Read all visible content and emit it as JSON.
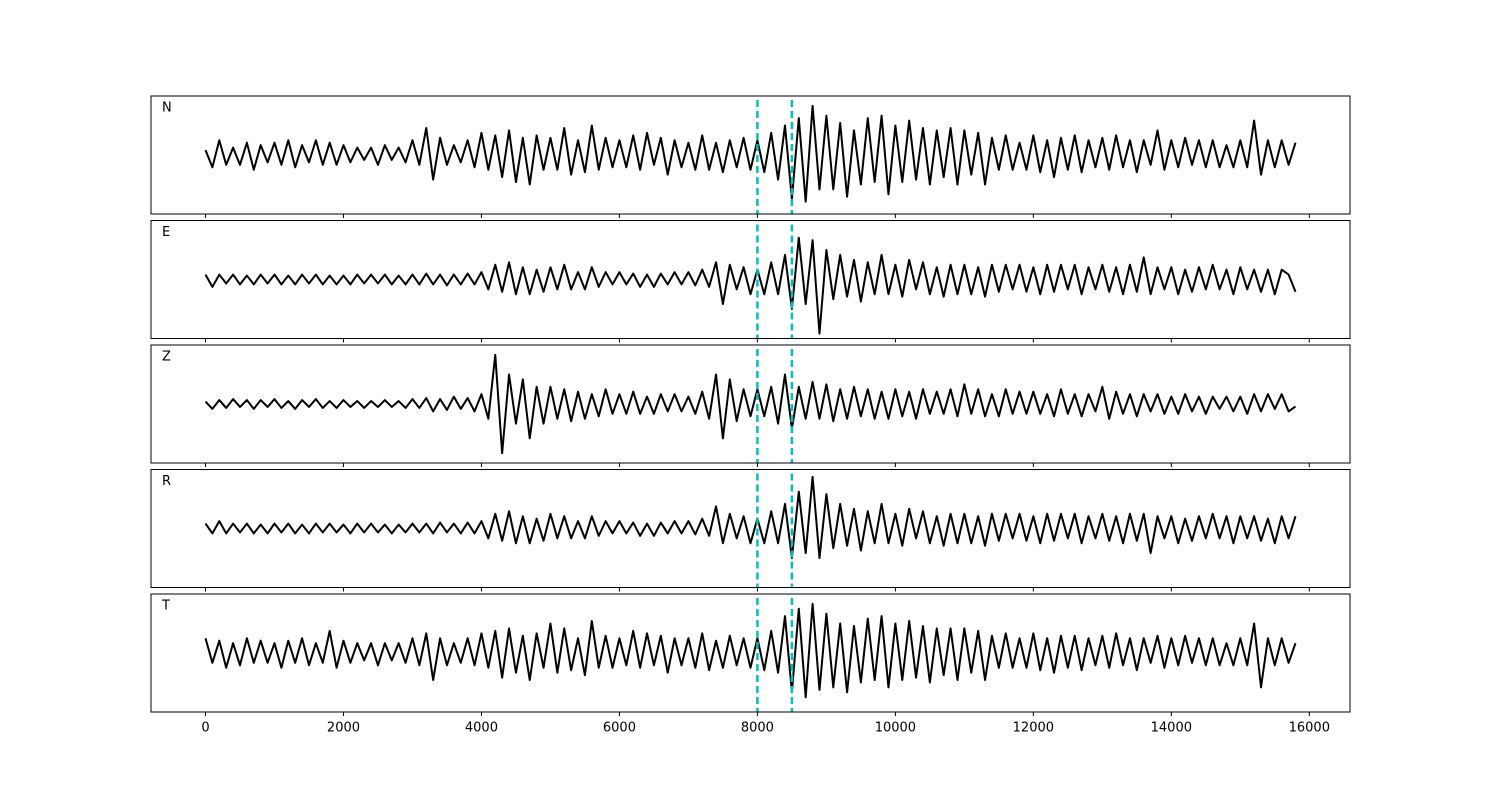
{
  "chart_data": {
    "type": "line",
    "x": [
      0,
      100,
      200,
      300,
      400,
      500,
      600,
      700,
      800,
      900,
      1000,
      1100,
      1200,
      1300,
      1400,
      1500,
      1600,
      1700,
      1800,
      1900,
      2000,
      2100,
      2200,
      2300,
      2400,
      2500,
      2600,
      2700,
      2800,
      2900,
      3000,
      3100,
      3200,
      3300,
      3400,
      3500,
      3600,
      3700,
      3800,
      3900,
      4000,
      4100,
      4200,
      4300,
      4400,
      4500,
      4600,
      4700,
      4800,
      4900,
      5000,
      5100,
      5200,
      5300,
      5400,
      5500,
      5600,
      5700,
      5800,
      5900,
      6000,
      6100,
      6200,
      6300,
      6400,
      6500,
      6600,
      6700,
      6800,
      6900,
      7000,
      7100,
      7200,
      7300,
      7400,
      7500,
      7600,
      7700,
      7800,
      7900,
      8000,
      8100,
      8200,
      8300,
      8400,
      8500,
      8600,
      8700,
      8800,
      8900,
      9000,
      9100,
      9200,
      9300,
      9400,
      9500,
      9600,
      9700,
      9800,
      9900,
      10000,
      10100,
      10200,
      10300,
      10400,
      10500,
      10600,
      10700,
      10800,
      10900,
      11000,
      11100,
      11200,
      11300,
      11400,
      11500,
      11600,
      11700,
      11800,
      11900,
      12000,
      12100,
      12200,
      12300,
      12400,
      12500,
      12600,
      12700,
      12800,
      12900,
      13000,
      13100,
      13200,
      13300,
      13400,
      13500,
      13600,
      13700,
      13800,
      13900,
      14000,
      14100,
      14200,
      14300,
      14400,
      14500,
      14600,
      14700,
      14800,
      14900,
      15000,
      15100,
      15200,
      15300,
      15400,
      15500,
      15600,
      15700,
      15800
    ],
    "series": [
      {
        "name": "N",
        "color": "#000000",
        "values": [
          0.1,
          -0.25,
          0.3,
          -0.2,
          0.15,
          -0.2,
          0.25,
          -0.3,
          0.2,
          -0.15,
          0.25,
          -0.2,
          0.3,
          -0.25,
          0.2,
          -0.15,
          0.3,
          -0.2,
          0.25,
          -0.2,
          0.2,
          -0.15,
          0.15,
          -0.1,
          0.15,
          -0.2,
          0.2,
          -0.1,
          0.15,
          -0.15,
          0.3,
          -0.2,
          0.55,
          -0.5,
          0.35,
          -0.2,
          0.2,
          -0.15,
          0.3,
          -0.25,
          0.45,
          -0.3,
          0.4,
          -0.45,
          0.5,
          -0.55,
          0.35,
          -0.6,
          0.4,
          -0.3,
          0.35,
          -0.3,
          0.55,
          -0.4,
          0.3,
          -0.35,
          0.6,
          -0.3,
          0.35,
          -0.25,
          0.3,
          -0.25,
          0.4,
          -0.3,
          0.45,
          -0.2,
          0.35,
          -0.4,
          0.3,
          -0.25,
          0.25,
          -0.3,
          0.4,
          -0.3,
          0.25,
          -0.35,
          0.3,
          -0.25,
          0.35,
          -0.3,
          0.3,
          -0.35,
          0.45,
          -0.5,
          0.6,
          -0.9,
          0.75,
          -0.95,
          1.0,
          -0.7,
          0.8,
          -0.7,
          0.65,
          -0.85,
          0.5,
          -0.6,
          0.75,
          -0.55,
          0.8,
          -0.8,
          0.6,
          -0.55,
          0.7,
          -0.5,
          0.55,
          -0.6,
          0.5,
          -0.45,
          0.55,
          -0.6,
          0.5,
          -0.4,
          0.45,
          -0.6,
          0.35,
          -0.3,
          0.4,
          -0.3,
          0.25,
          -0.3,
          0.4,
          -0.35,
          0.3,
          -0.45,
          0.35,
          -0.3,
          0.4,
          -0.35,
          0.3,
          -0.25,
          0.35,
          -0.3,
          0.4,
          -0.25,
          0.3,
          -0.35,
          0.3,
          -0.2,
          0.5,
          -0.3,
          0.3,
          -0.25,
          0.35,
          -0.2,
          0.3,
          -0.25,
          0.3,
          -0.25,
          0.2,
          -0.25,
          0.3,
          -0.25,
          0.7,
          -0.4,
          0.3,
          -0.25,
          0.3,
          -0.2,
          0.25
        ]
      },
      {
        "name": "E",
        "color": "#000000",
        "values": [
          0.1,
          -0.15,
          0.1,
          -0.08,
          0.1,
          -0.1,
          0.08,
          -0.1,
          0.1,
          -0.08,
          0.1,
          -0.1,
          0.08,
          -0.1,
          0.1,
          -0.08,
          0.1,
          -0.1,
          0.08,
          -0.1,
          0.08,
          -0.1,
          0.1,
          -0.08,
          0.1,
          -0.08,
          0.1,
          -0.1,
          0.08,
          -0.1,
          0.1,
          -0.1,
          0.12,
          -0.1,
          0.1,
          -0.12,
          0.1,
          -0.1,
          0.12,
          -0.1,
          0.15,
          -0.2,
          0.3,
          -0.25,
          0.35,
          -0.3,
          0.25,
          -0.3,
          0.2,
          -0.25,
          0.25,
          -0.2,
          0.3,
          -0.2,
          0.15,
          -0.2,
          0.25,
          -0.15,
          0.15,
          -0.1,
          0.15,
          -0.1,
          0.12,
          -0.15,
          0.1,
          -0.15,
          0.12,
          -0.1,
          0.15,
          -0.1,
          0.15,
          -0.12,
          0.2,
          -0.15,
          0.35,
          -0.5,
          0.3,
          -0.2,
          0.25,
          -0.3,
          0.2,
          -0.3,
          0.35,
          -0.3,
          0.5,
          -0.6,
          0.85,
          -0.5,
          0.8,
          -1.1,
          0.6,
          -0.4,
          0.5,
          -0.35,
          0.4,
          -0.45,
          0.35,
          -0.3,
          0.5,
          -0.3,
          0.3,
          -0.35,
          0.4,
          -0.2,
          0.35,
          -0.3,
          0.25,
          -0.35,
          0.3,
          -0.3,
          0.3,
          -0.3,
          0.25,
          -0.35,
          0.3,
          -0.25,
          0.3,
          -0.2,
          0.3,
          -0.25,
          0.25,
          -0.3,
          0.3,
          -0.25,
          0.3,
          -0.2,
          0.3,
          -0.3,
          0.25,
          -0.2,
          0.3,
          -0.25,
          0.25,
          -0.3,
          0.3,
          -0.25,
          0.45,
          -0.3,
          0.25,
          -0.2,
          0.25,
          -0.3,
          0.2,
          -0.25,
          0.25,
          -0.2,
          0.3,
          -0.2,
          0.2,
          -0.3,
          0.25,
          -0.2,
          0.2,
          -0.25,
          0.2,
          -0.3,
          0.2,
          0.1,
          -0.25
        ]
      },
      {
        "name": "Z",
        "color": "#000000",
        "values": [
          0.05,
          -0.1,
          0.08,
          -0.08,
          0.1,
          -0.06,
          0.08,
          -0.1,
          0.08,
          -0.06,
          0.1,
          -0.08,
          0.06,
          -0.1,
          0.08,
          -0.06,
          0.1,
          -0.08,
          0.06,
          -0.08,
          0.08,
          -0.06,
          0.06,
          -0.08,
          0.06,
          -0.06,
          0.08,
          -0.06,
          0.06,
          -0.08,
          0.1,
          -0.08,
          0.12,
          -0.15,
          0.1,
          -0.12,
          0.15,
          -0.1,
          0.12,
          -0.15,
          0.2,
          -0.3,
          1.0,
          -1.0,
          0.6,
          -0.4,
          0.5,
          -0.7,
          0.35,
          -0.4,
          0.35,
          -0.3,
          0.3,
          -0.35,
          0.25,
          -0.3,
          0.2,
          -0.25,
          0.3,
          -0.2,
          0.2,
          -0.2,
          0.25,
          -0.2,
          0.15,
          -0.2,
          0.2,
          -0.15,
          0.2,
          -0.15,
          0.15,
          -0.2,
          0.25,
          -0.3,
          0.6,
          -0.7,
          0.5,
          -0.35,
          0.3,
          -0.25,
          0.3,
          -0.25,
          0.35,
          -0.4,
          0.6,
          -0.5,
          0.35,
          -0.3,
          0.45,
          -0.3,
          0.4,
          -0.35,
          0.3,
          -0.3,
          0.35,
          -0.25,
          0.3,
          -0.3,
          0.25,
          -0.3,
          0.3,
          -0.25,
          0.25,
          -0.3,
          0.3,
          -0.2,
          0.25,
          -0.2,
          0.3,
          -0.25,
          0.4,
          -0.2,
          0.3,
          -0.25,
          0.2,
          -0.25,
          0.3,
          -0.2,
          0.25,
          -0.2,
          0.25,
          -0.2,
          0.2,
          -0.25,
          0.3,
          -0.2,
          0.2,
          -0.25,
          0.2,
          -0.15,
          0.35,
          -0.3,
          0.25,
          -0.2,
          0.2,
          -0.25,
          0.2,
          -0.15,
          0.2,
          -0.2,
          0.15,
          -0.2,
          0.2,
          -0.15,
          0.15,
          -0.2,
          0.15,
          -0.1,
          0.15,
          -0.15,
          0.15,
          -0.2,
          0.2,
          -0.15,
          0.2,
          -0.1,
          0.2,
          -0.15,
          -0.05
        ]
      },
      {
        "name": "R",
        "color": "#000000",
        "values": [
          0.1,
          -0.1,
          0.15,
          -0.1,
          0.1,
          -0.08,
          0.1,
          -0.1,
          0.08,
          -0.1,
          0.1,
          -0.08,
          0.1,
          -0.1,
          0.08,
          -0.1,
          0.1,
          -0.08,
          0.1,
          -0.08,
          0.08,
          -0.1,
          0.1,
          -0.08,
          0.1,
          -0.08,
          0.08,
          -0.1,
          0.08,
          -0.08,
          0.1,
          -0.08,
          0.1,
          -0.1,
          0.12,
          -0.08,
          0.1,
          -0.1,
          0.12,
          -0.1,
          0.15,
          -0.2,
          0.3,
          -0.25,
          0.35,
          -0.3,
          0.25,
          -0.3,
          0.2,
          -0.25,
          0.3,
          -0.2,
          0.25,
          -0.2,
          0.15,
          -0.2,
          0.25,
          -0.15,
          0.15,
          -0.1,
          0.15,
          -0.1,
          0.12,
          -0.15,
          0.1,
          -0.15,
          0.12,
          -0.1,
          0.15,
          -0.1,
          0.15,
          -0.12,
          0.2,
          -0.15,
          0.45,
          -0.3,
          0.3,
          -0.2,
          0.25,
          -0.3,
          0.2,
          -0.3,
          0.35,
          -0.3,
          0.5,
          -0.6,
          0.75,
          -0.5,
          1.05,
          -0.6,
          0.7,
          -0.4,
          0.5,
          -0.35,
          0.4,
          -0.45,
          0.35,
          -0.3,
          0.5,
          -0.3,
          0.3,
          -0.35,
          0.4,
          -0.2,
          0.35,
          -0.3,
          0.25,
          -0.35,
          0.3,
          -0.3,
          0.3,
          -0.3,
          0.25,
          -0.35,
          0.3,
          -0.25,
          0.3,
          -0.2,
          0.3,
          -0.25,
          0.25,
          -0.3,
          0.3,
          -0.25,
          0.3,
          -0.2,
          0.3,
          -0.3,
          0.25,
          -0.2,
          0.3,
          -0.25,
          0.25,
          -0.3,
          0.3,
          -0.25,
          0.3,
          -0.5,
          0.25,
          -0.2,
          0.25,
          -0.3,
          0.2,
          -0.25,
          0.25,
          -0.2,
          0.3,
          -0.2,
          0.25,
          -0.3,
          0.25,
          -0.2,
          0.25,
          -0.25,
          0.2,
          -0.3,
          0.25,
          -0.2,
          0.25
        ]
      },
      {
        "name": "T",
        "color": "#000000",
        "values": [
          0.3,
          -0.2,
          0.25,
          -0.3,
          0.2,
          -0.25,
          0.3,
          -0.2,
          0.25,
          -0.2,
          0.2,
          -0.3,
          0.25,
          -0.2,
          0.3,
          -0.25,
          0.2,
          -0.2,
          0.45,
          -0.3,
          0.25,
          -0.2,
          0.2,
          -0.15,
          0.2,
          -0.25,
          0.2,
          -0.15,
          0.2,
          -0.2,
          0.3,
          -0.25,
          0.4,
          -0.55,
          0.3,
          -0.25,
          0.2,
          -0.2,
          0.3,
          -0.25,
          0.4,
          -0.3,
          0.45,
          -0.5,
          0.5,
          -0.4,
          0.35,
          -0.55,
          0.4,
          -0.3,
          0.6,
          -0.4,
          0.5,
          -0.35,
          0.3,
          -0.45,
          0.65,
          -0.3,
          0.35,
          -0.3,
          0.3,
          -0.25,
          0.45,
          -0.3,
          0.4,
          -0.25,
          0.35,
          -0.4,
          0.3,
          -0.25,
          0.3,
          -0.3,
          0.4,
          -0.35,
          0.25,
          -0.3,
          0.35,
          -0.25,
          0.3,
          -0.3,
          0.3,
          -0.35,
          0.45,
          -0.4,
          0.75,
          -0.8,
          0.9,
          -0.9,
          1.0,
          -0.75,
          0.8,
          -0.7,
          0.6,
          -0.8,
          0.55,
          -0.6,
          0.7,
          -0.55,
          0.75,
          -0.7,
          0.6,
          -0.55,
          0.65,
          -0.5,
          0.55,
          -0.6,
          0.5,
          -0.45,
          0.5,
          -0.55,
          0.5,
          -0.4,
          0.45,
          -0.55,
          0.35,
          -0.3,
          0.4,
          -0.3,
          0.3,
          -0.3,
          0.4,
          -0.35,
          0.3,
          -0.4,
          0.35,
          -0.3,
          0.35,
          -0.35,
          0.3,
          -0.25,
          0.35,
          -0.3,
          0.4,
          -0.25,
          0.3,
          -0.35,
          0.3,
          -0.2,
          0.35,
          -0.3,
          0.3,
          -0.25,
          0.35,
          -0.2,
          0.3,
          -0.25,
          0.3,
          -0.25,
          0.2,
          -0.25,
          0.3,
          -0.25,
          0.6,
          -0.7,
          0.3,
          -0.25,
          0.3,
          -0.2,
          0.2
        ]
      }
    ],
    "vlines": [
      8000,
      8500
    ],
    "vline_color": "#00bfbf",
    "vline_style": "dashed",
    "xlim": [
      -790,
      16590
    ],
    "xticks": [
      0,
      2000,
      4000,
      6000,
      8000,
      10000,
      12000,
      14000,
      16000
    ],
    "ylim": [
      -1.2,
      1.2
    ]
  }
}
